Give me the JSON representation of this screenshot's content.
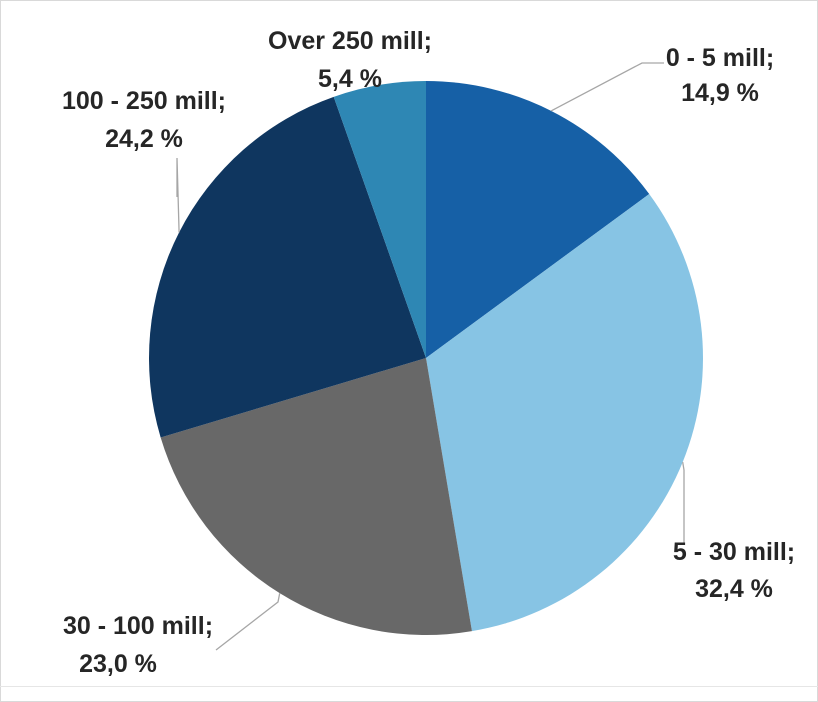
{
  "chart_data": {
    "type": "pie",
    "title": "",
    "start_angle_deg": 0,
    "direction": "clockwise",
    "slices": [
      {
        "category": "0 - 5 mill;",
        "value_label": "14,9 %",
        "value": 14.9,
        "color": "#1660a6"
      },
      {
        "category": "5 - 30 mill;",
        "value_label": "32,4 %",
        "value": 32.4,
        "color": "#87c4e4"
      },
      {
        "category": "30 - 100 mill;",
        "value_label": "23,0 %",
        "value": 23.0,
        "color": "#686868"
      },
      {
        "category": "100 - 250 mill;",
        "value_label": "24,2 %",
        "value": 24.2,
        "color": "#0f365f"
      },
      {
        "category": "Over 250 mill;",
        "value_label": "5,4 %",
        "value": 5.4,
        "color": "#2e87b4"
      }
    ],
    "legend": "none",
    "data_labels": "outside with leader lines"
  }
}
